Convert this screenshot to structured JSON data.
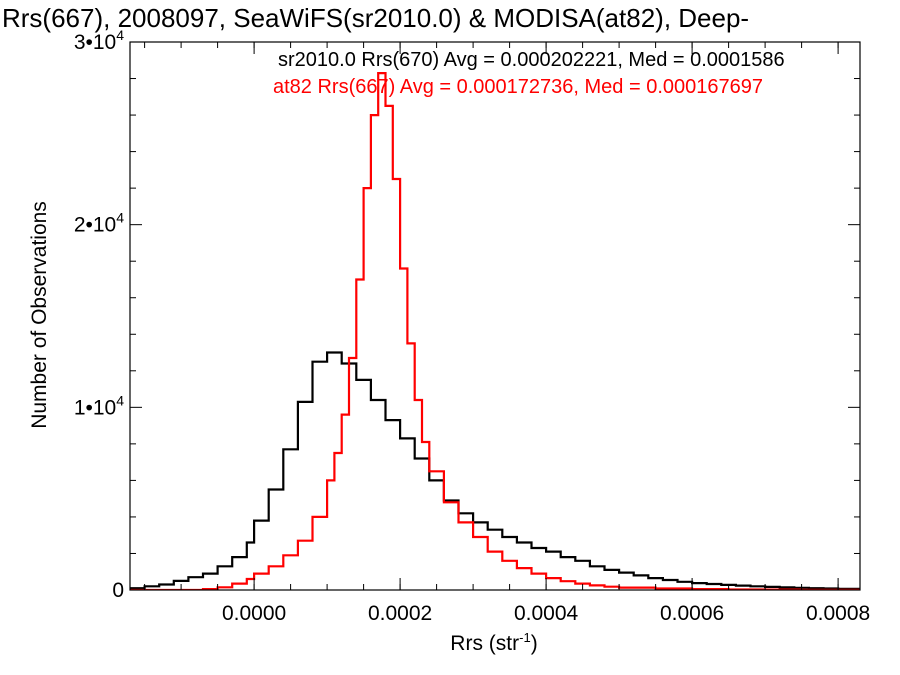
{
  "chart_data": {
    "type": "histogram",
    "title": "Rrs(667), 2008097, SeaWiFS(sr2010.0) & MODISA(at82), Deep-",
    "xlabel": "Rrs (str",
    "xlabel_sup": "-1",
    "xlabel_tail": ")",
    "ylabel": "Number of Observations",
    "xlim": [
      -0.00017,
      0.00083
    ],
    "ylim": [
      0,
      30000
    ],
    "x_ticks": [
      {
        "value": 0.0,
        "label": "0.0000"
      },
      {
        "value": 0.0002,
        "label": "0.0002"
      },
      {
        "value": 0.0004,
        "label": "0.0004"
      },
      {
        "value": 0.0006,
        "label": "0.0006"
      },
      {
        "value": 0.0008,
        "label": "0.0008"
      }
    ],
    "y_ticks": [
      {
        "value": 0,
        "label": "0",
        "exp": ""
      },
      {
        "value": 10000,
        "label": "1•10",
        "exp": "4"
      },
      {
        "value": 20000,
        "label": "2•10",
        "exp": "4"
      },
      {
        "value": 30000,
        "label": "3•10",
        "exp": "4"
      }
    ],
    "grid": false,
    "legend_position": "top-right",
    "series": [
      {
        "name": "sr2010.0 Rrs(670) Avg = 0.000202221, Med = 0.0001586",
        "color": "#000000",
        "x": [
          -0.00017,
          -0.00015,
          -0.00013,
          -0.00011,
          -9e-05,
          -7e-05,
          -5e-05,
          -3e-05,
          -1e-05,
          0.0,
          2e-05,
          4e-05,
          6e-05,
          8e-05,
          0.0001,
          0.00012,
          0.00014,
          0.00016,
          0.00018,
          0.0002,
          0.00022,
          0.00024,
          0.00026,
          0.00028,
          0.0003,
          0.00032,
          0.00034,
          0.00036,
          0.00038,
          0.0004,
          0.00042,
          0.00044,
          0.00046,
          0.00048,
          0.0005,
          0.00052,
          0.00054,
          0.00056,
          0.00058,
          0.0006,
          0.00062,
          0.00064,
          0.00066,
          0.00068,
          0.0007,
          0.00072,
          0.00074,
          0.00076,
          0.00078,
          0.0008,
          0.00083
        ],
        "y": [
          100,
          200,
          300,
          500,
          700,
          900,
          1300,
          1800,
          2600,
          3800,
          5500,
          7700,
          10300,
          12500,
          13000,
          12400,
          11500,
          10400,
          9300,
          8300,
          7200,
          6000,
          4900,
          4200,
          3700,
          3300,
          2900,
          2600,
          2300,
          2100,
          1800,
          1600,
          1300,
          1100,
          950,
          800,
          650,
          550,
          450,
          380,
          330,
          280,
          240,
          200,
          170,
          140,
          120,
          100,
          80,
          60,
          40
        ]
      },
      {
        "name": "at82 Rrs(667) Avg = 0.000172736, Med = 0.000167697",
        "color": "#ff0000",
        "x": [
          -0.00017,
          -0.00015,
          -0.00013,
          -0.00011,
          -9e-05,
          -7e-05,
          -5e-05,
          -3e-05,
          -1e-05,
          0.0,
          2e-05,
          4e-05,
          6e-05,
          8e-05,
          0.0001,
          0.00011,
          0.00012,
          0.00013,
          0.00014,
          0.00015,
          0.00016,
          0.00017,
          0.00018,
          0.00019,
          0.0002,
          0.00021,
          0.00022,
          0.00023,
          0.00024,
          0.00026,
          0.00028,
          0.0003,
          0.00032,
          0.00034,
          0.00036,
          0.00038,
          0.0004,
          0.00042,
          0.00044,
          0.00046,
          0.00048,
          0.0005,
          0.00055,
          0.0006,
          0.00065,
          0.0007,
          0.00075,
          0.0008,
          0.00083
        ],
        "y": [
          0,
          0,
          0,
          0,
          0,
          50,
          150,
          350,
          600,
          900,
          1300,
          1900,
          2700,
          4000,
          6000,
          7500,
          9600,
          12700,
          17000,
          22000,
          26000,
          28300,
          26500,
          22500,
          17600,
          13500,
          10400,
          8100,
          6500,
          4800,
          3700,
          2900,
          2100,
          1600,
          1200,
          900,
          650,
          480,
          350,
          250,
          180,
          130,
          80,
          50,
          30,
          20,
          10,
          5,
          0
        ]
      }
    ]
  }
}
